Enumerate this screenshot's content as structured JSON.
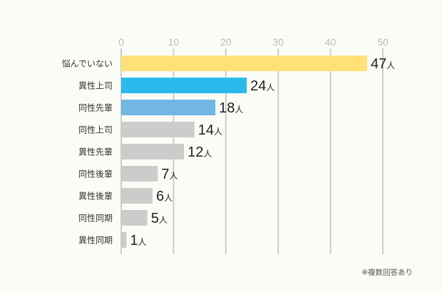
{
  "chart_data": {
    "type": "bar",
    "orientation": "horizontal",
    "categories": [
      "悩んでいない",
      "異性上司",
      "同性先輩",
      "同性上司",
      "異性先輩",
      "同性後輩",
      "異性後輩",
      "同性同期",
      "異性同期"
    ],
    "values": [
      47,
      24,
      18,
      14,
      12,
      7,
      6,
      5,
      1
    ],
    "value_unit": "人",
    "xlim": [
      0,
      50
    ],
    "xticks": [
      0,
      10,
      20,
      30,
      40,
      50
    ],
    "axis_position": "top",
    "grid": true,
    "bar_colors": [
      "#ffe177",
      "#2bbaeb",
      "#72b7e3",
      "#cccccc",
      "#cccccc",
      "#cccccc",
      "#cccccc",
      "#cccccc",
      "#cccccc"
    ],
    "gridline_color": "#cccccc"
  },
  "footnote": "※複数回答あり"
}
